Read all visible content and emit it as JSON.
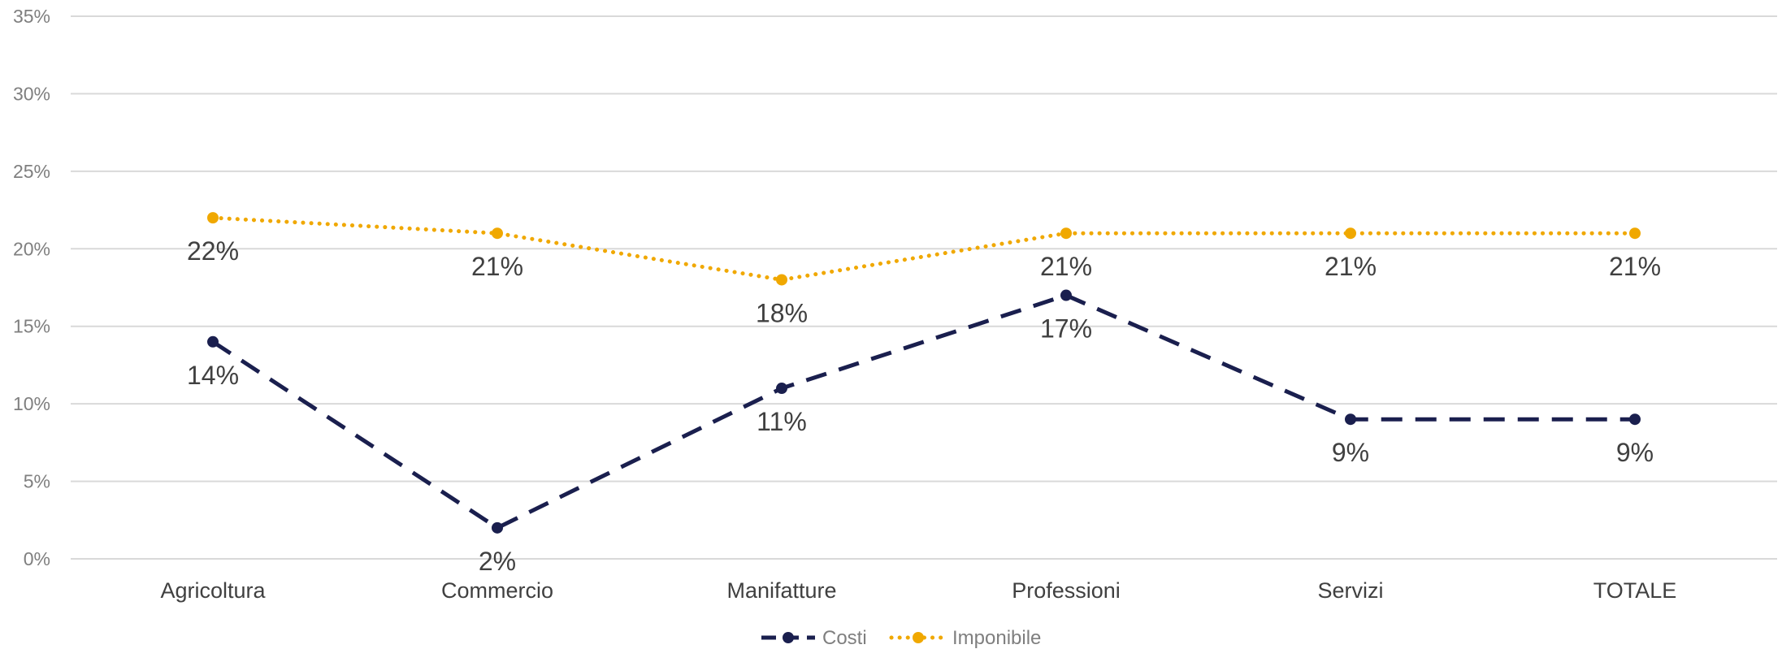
{
  "chart_data": {
    "type": "line",
    "title": "",
    "xlabel": "",
    "ylabel": "",
    "categories": [
      "Agricoltura",
      "Commercio",
      "Manifatture",
      "Professioni",
      "Servizi",
      "TOTALE"
    ],
    "ylim": [
      0,
      35
    ],
    "yticks": [
      0,
      5,
      10,
      15,
      20,
      25,
      30,
      35
    ],
    "ytick_labels": [
      "0%",
      "5%",
      "10%",
      "15%",
      "20%",
      "25%",
      "30%",
      "35%"
    ],
    "grid": true,
    "legend_position": "bottom",
    "series": [
      {
        "name": "Costi",
        "values": [
          14,
          2,
          11,
          17,
          9,
          9
        ],
        "labels": [
          "14%",
          "2%",
          "11%",
          "17%",
          "9%",
          "9%"
        ],
        "color": "#1a1f4e",
        "style": "dashed"
      },
      {
        "name": "Imponibile",
        "values": [
          22,
          21,
          18,
          21,
          21,
          21
        ],
        "labels": [
          "22%",
          "21%",
          "18%",
          "21%",
          "21%",
          "21%"
        ],
        "color": "#f0a800",
        "style": "dotted"
      }
    ]
  }
}
